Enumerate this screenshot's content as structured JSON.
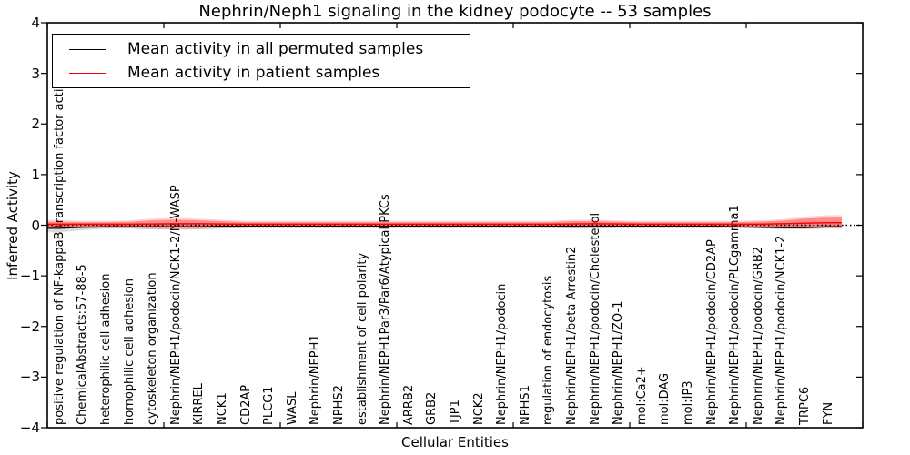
{
  "figure": {
    "title": "Nephrin/Neph1 signaling in the kidney podocyte -- 53 samples",
    "xlabel": "Cellular Entities",
    "ylabel": "Inferred Activity"
  },
  "legend": {
    "items": [
      {
        "label": "Mean activity in all permuted samples",
        "color": "#000000"
      },
      {
        "label": "Mean activity in patient samples",
        "color": "#ff0000"
      }
    ]
  },
  "chart_data": {
    "type": "line",
    "title": "Nephrin/Neph1 signaling in the kidney podocyte -- 53 samples",
    "xlabel": "Cellular Entities",
    "ylabel": "Inferred Activity",
    "ylim": [
      -4,
      4
    ],
    "yticks": [
      -4,
      -3,
      -2,
      -1,
      0,
      1,
      2,
      3,
      4
    ],
    "xticks_major": [
      0,
      5,
      10,
      15,
      20,
      25,
      30,
      35
    ],
    "grid": false,
    "legend_position": "upper left",
    "zero_line": {
      "y": 0,
      "style": "dotted",
      "color": "#000000"
    },
    "categories": [
      "positive regulation of NF-kappaB transcription factor activity",
      "ChemicalAbstracts:57-88-5",
      "heterophilic cell adhesion",
      "homophilic cell adhesion",
      "cytoskeleton organization",
      "Nephrin/NEPH1/podocin/NCK1-2/N-WASP",
      "KIRREL",
      "NCK1",
      "CD2AP",
      "PLCG1",
      "WASL",
      "Nephrin/NEPH1",
      "NPHS2",
      "establishment of cell polarity",
      "Nephrin/NEPH1Par3/Par6/Atypical PKCs",
      "ARRB2",
      "GRB2",
      "TJP1",
      "NCK2",
      "Nephrin/NEPH1/podocin",
      "NPHS1",
      "regulation of endocytosis",
      "Nephrin/NEPH1/beta Arrestin2",
      "Nephrin/NEPH1/podocin/Cholesterol",
      "Nephrin/NEPH1/ZO-1",
      "mol:Ca2+",
      "mol:DAG",
      "mol:IP3",
      "Nephrin/NEPH1/podocin/CD2AP",
      "Nephrin/NEPH1/podocin/PLCgamma1",
      "Nephrin/NEPH1/podocin/GRB2",
      "Nephrin/NEPH1/podocin/NCK1-2",
      "TRPC6",
      "FYN"
    ],
    "series": [
      {
        "name": "Mean activity in all permuted samples",
        "color": "#000000",
        "values": [
          -0.06,
          -0.04,
          -0.03,
          -0.03,
          -0.03,
          -0.03,
          -0.03,
          -0.02,
          -0.02,
          -0.02,
          -0.02,
          -0.02,
          -0.02,
          -0.02,
          -0.02,
          -0.02,
          -0.02,
          -0.02,
          -0.02,
          -0.02,
          -0.02,
          -0.02,
          -0.02,
          -0.02,
          -0.02,
          -0.02,
          -0.02,
          -0.02,
          -0.02,
          -0.03,
          -0.04,
          -0.05,
          -0.05,
          -0.03
        ],
        "band": {
          "fill": "#999999",
          "opacity": 0.35,
          "upper": [
            0.02,
            0.02,
            0.01,
            0.01,
            0.02,
            0.03,
            0.02,
            0.01,
            0.01,
            0.01,
            0.01,
            0.01,
            0.01,
            0.01,
            0.01,
            0.01,
            0.01,
            0.01,
            0.01,
            0.01,
            0.01,
            0.01,
            0.02,
            0.02,
            0.01,
            0.01,
            0.01,
            0.01,
            0.01,
            0.01,
            0.01,
            0.01,
            0.02,
            0.02
          ],
          "lower": [
            -0.14,
            -0.1,
            -0.07,
            -0.07,
            -0.08,
            -0.09,
            -0.08,
            -0.06,
            -0.05,
            -0.05,
            -0.05,
            -0.05,
            -0.05,
            -0.05,
            -0.05,
            -0.05,
            -0.05,
            -0.05,
            -0.05,
            -0.05,
            -0.05,
            -0.05,
            -0.06,
            -0.06,
            -0.05,
            -0.05,
            -0.05,
            -0.05,
            -0.05,
            -0.05,
            -0.06,
            -0.08,
            -0.08,
            -0.07
          ]
        }
      },
      {
        "name": "Mean activity in patient samples",
        "color": "#ff0000",
        "values": [
          0.02,
          0.02,
          0.02,
          0.02,
          0.025,
          0.03,
          0.03,
          0.025,
          0.02,
          0.02,
          0.02,
          0.02,
          0.02,
          0.02,
          0.02,
          0.02,
          0.02,
          0.02,
          0.02,
          0.02,
          0.02,
          0.02,
          0.025,
          0.03,
          0.025,
          0.02,
          0.02,
          0.02,
          0.02,
          0.02,
          0.02,
          0.03,
          0.04,
          0.05
        ],
        "band_inner": {
          "fill": "#ff0000",
          "opacity": 0.35,
          "upper": [
            0.07,
            0.06,
            0.06,
            0.07,
            0.1,
            0.11,
            0.1,
            0.08,
            0.06,
            0.06,
            0.06,
            0.06,
            0.06,
            0.06,
            0.06,
            0.06,
            0.06,
            0.06,
            0.06,
            0.06,
            0.06,
            0.06,
            0.08,
            0.08,
            0.07,
            0.06,
            0.06,
            0.06,
            0.06,
            0.06,
            0.07,
            0.09,
            0.13,
            0.15
          ],
          "lower": [
            -0.04,
            -0.03,
            -0.03,
            -0.03,
            -0.05,
            -0.05,
            -0.05,
            -0.04,
            -0.03,
            -0.03,
            -0.03,
            -0.03,
            -0.03,
            -0.03,
            -0.03,
            -0.03,
            -0.03,
            -0.03,
            -0.03,
            -0.03,
            -0.03,
            -0.03,
            -0.04,
            -0.04,
            -0.03,
            -0.03,
            -0.03,
            -0.03,
            -0.03,
            -0.03,
            -0.03,
            -0.03,
            -0.03,
            -0.03
          ]
        },
        "band_outer": {
          "fill": "#ff0000",
          "opacity": 0.16,
          "upper": [
            0.11,
            0.09,
            0.09,
            0.1,
            0.13,
            0.15,
            0.13,
            0.11,
            0.09,
            0.09,
            0.09,
            0.09,
            0.09,
            0.09,
            0.09,
            0.09,
            0.09,
            0.09,
            0.09,
            0.09,
            0.09,
            0.09,
            0.11,
            0.11,
            0.1,
            0.09,
            0.09,
            0.09,
            0.09,
            0.09,
            0.1,
            0.12,
            0.17,
            0.2
          ],
          "lower": [
            -0.07,
            -0.06,
            -0.06,
            -0.06,
            -0.08,
            -0.08,
            -0.08,
            -0.07,
            -0.06,
            -0.06,
            -0.06,
            -0.06,
            -0.06,
            -0.06,
            -0.06,
            -0.06,
            -0.06,
            -0.06,
            -0.06,
            -0.06,
            -0.06,
            -0.06,
            -0.07,
            -0.07,
            -0.06,
            -0.06,
            -0.06,
            -0.06,
            -0.06,
            -0.06,
            -0.06,
            -0.06,
            -0.06,
            -0.06
          ]
        }
      }
    ]
  }
}
